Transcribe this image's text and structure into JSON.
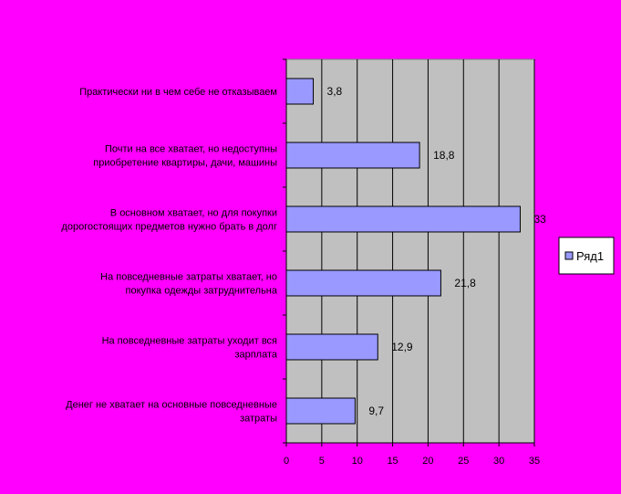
{
  "chart_data": {
    "type": "bar",
    "orientation": "horizontal",
    "categories": [
      [
        "Практически ни в чем  себе не отказываем"
      ],
      [
        "Почти на все хватает, но недоступны",
        "приобретение квартиры, дачи, машины"
      ],
      [
        "В основном хватает, но для покупки",
        "дорогостоящих предметов нужно брать в долг"
      ],
      [
        "На повседневные затраты хватает, но",
        "покупка одежды затруднительна"
      ],
      [
        "На повседневные затраты уходит вся",
        "зарплата"
      ],
      [
        "Денег не хватает на основные повседневные",
        "затраты"
      ]
    ],
    "series": [
      {
        "name": "Ряд1",
        "values": [
          3.8,
          18.8,
          33,
          21.8,
          12.9,
          9.7
        ]
      }
    ],
    "value_labels": [
      "3,8",
      "18,8",
      "33",
      "21,8",
      "12,9",
      "9,7"
    ],
    "xticks": [
      0,
      5,
      10,
      15,
      20,
      25,
      30,
      35
    ],
    "xlim": [
      0,
      35
    ],
    "grid": "vertical",
    "legend": "right",
    "colors": {
      "background": "#ff00ff",
      "plot_area": "#c0c0c0",
      "bar_fill": "#9999ff",
      "bar_stroke": "#000000",
      "legend_fill": "#ffffff"
    }
  }
}
